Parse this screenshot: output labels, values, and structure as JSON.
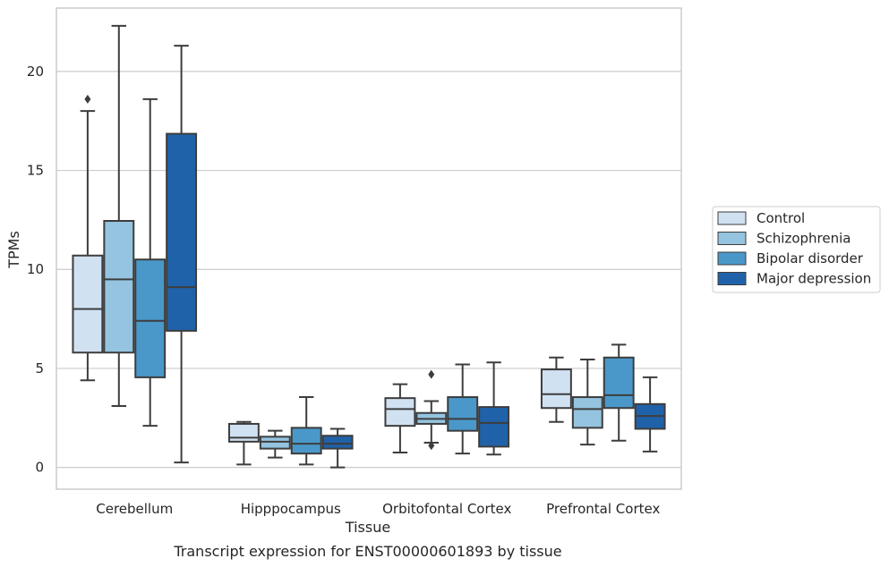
{
  "chart_data": {
    "type": "box",
    "xlabel": "Tissue",
    "ylabel": "TPMs",
    "caption": "Transcript expression for ENST00000601893 by tissue",
    "ylim": [
      -1.1,
      23.2
    ],
    "yticks": [
      0,
      5,
      10,
      15,
      20
    ],
    "grid": "horizontal",
    "legend_position": "right",
    "categories": [
      "Cerebellum",
      "Hipppocampus",
      "Orbitofontal Cortex",
      "Prefrontal Cortex"
    ],
    "series": [
      {
        "name": "Control",
        "color": "#d0e1f2",
        "boxes": [
          {
            "whislo": 4.4,
            "q1": 5.8,
            "med": 8.0,
            "q3": 10.7,
            "whishi": 18.0,
            "fliers": [
              18.6
            ]
          },
          {
            "whislo": 0.15,
            "q1": 1.3,
            "med": 1.5,
            "q3": 2.2,
            "whishi": 2.3,
            "fliers": []
          },
          {
            "whislo": 0.75,
            "q1": 2.1,
            "med": 2.95,
            "q3": 3.5,
            "whishi": 4.2,
            "fliers": []
          },
          {
            "whislo": 2.3,
            "q1": 3.0,
            "med": 3.7,
            "q3": 4.95,
            "whishi": 5.55,
            "fliers": []
          }
        ]
      },
      {
        "name": "Schizophrenia",
        "color": "#94c4df",
        "boxes": [
          {
            "whislo": 3.1,
            "q1": 5.8,
            "med": 9.5,
            "q3": 12.45,
            "whishi": 22.3,
            "fliers": []
          },
          {
            "whislo": 0.5,
            "q1": 0.95,
            "med": 1.3,
            "q3": 1.55,
            "whishi": 1.85,
            "fliers": []
          },
          {
            "whislo": 1.25,
            "q1": 2.2,
            "med": 2.45,
            "q3": 2.75,
            "whishi": 3.35,
            "fliers": [
              4.7,
              1.1
            ]
          },
          {
            "whislo": 1.15,
            "q1": 2.0,
            "med": 2.95,
            "q3": 3.55,
            "whishi": 5.45,
            "fliers": []
          }
        ]
      },
      {
        "name": "Bipolar disorder",
        "color": "#4a98c9",
        "boxes": [
          {
            "whislo": 2.1,
            "q1": 4.55,
            "med": 7.4,
            "q3": 10.5,
            "whishi": 18.6,
            "fliers": []
          },
          {
            "whislo": 0.15,
            "q1": 0.7,
            "med": 1.2,
            "q3": 2.0,
            "whishi": 3.55,
            "fliers": []
          },
          {
            "whislo": 0.7,
            "q1": 1.85,
            "med": 2.45,
            "q3": 3.55,
            "whishi": 5.2,
            "fliers": []
          },
          {
            "whislo": 1.35,
            "q1": 3.0,
            "med": 3.65,
            "q3": 5.55,
            "whishi": 6.2,
            "fliers": []
          }
        ]
      },
      {
        "name": "Major depression",
        "color": "#2062a9",
        "boxes": [
          {
            "whislo": 0.25,
            "q1": 6.9,
            "med": 9.1,
            "q3": 16.85,
            "whishi": 21.3,
            "fliers": []
          },
          {
            "whislo": 0.0,
            "q1": 0.95,
            "med": 1.2,
            "q3": 1.6,
            "whishi": 1.95,
            "fliers": []
          },
          {
            "whislo": 0.65,
            "q1": 1.05,
            "med": 2.25,
            "q3": 3.05,
            "whishi": 5.3,
            "fliers": []
          },
          {
            "whislo": 0.8,
            "q1": 1.95,
            "med": 2.6,
            "q3": 3.2,
            "whishi": 4.55,
            "fliers": []
          }
        ]
      }
    ]
  }
}
